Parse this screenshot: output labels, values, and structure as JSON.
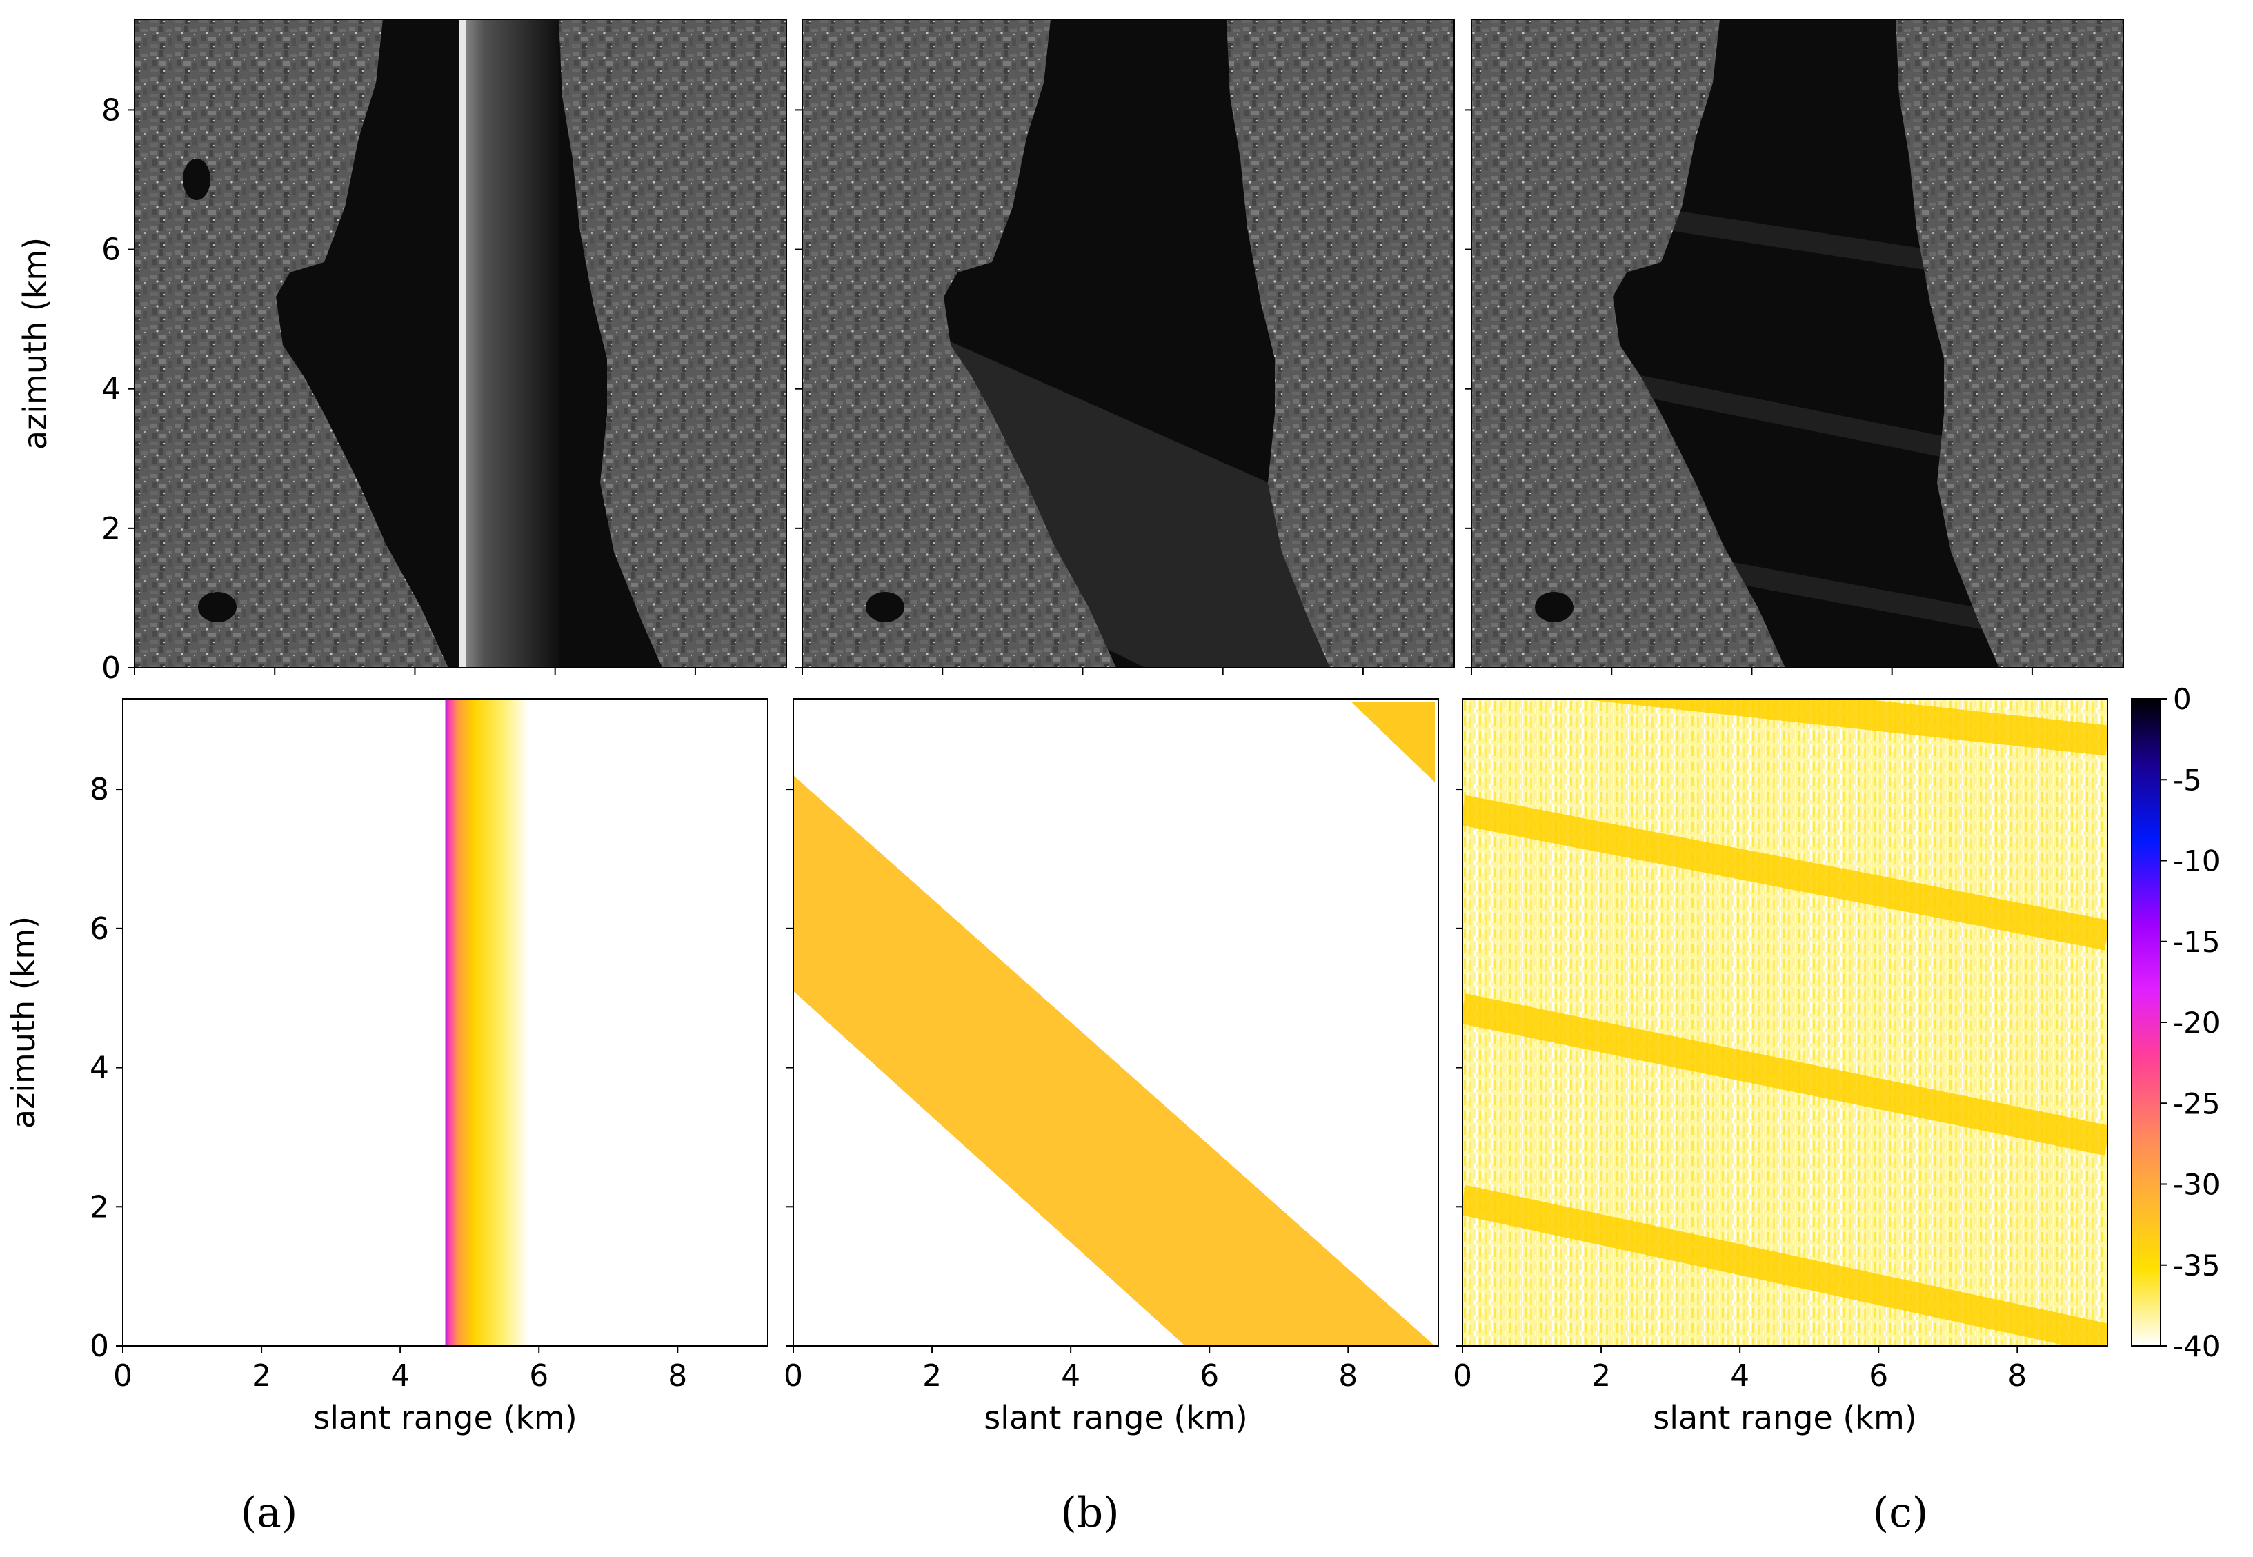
{
  "figure": {
    "subfigure_labels": [
      "(a)",
      "(b)",
      "(c)"
    ]
  },
  "chart_data": [
    {
      "type": "image",
      "panel": "a-top",
      "content": "SAR amplitude image with bright vertical line at slant range ~4.7 km",
      "xlim": [
        0,
        9.3
      ],
      "ylim": [
        0,
        9.3
      ],
      "xticks": [
        0,
        2,
        4,
        6,
        8
      ],
      "yticks": [
        0,
        2,
        4,
        6,
        8
      ],
      "ylabel": "azimuth (km)",
      "xlabel": "",
      "artifact": {
        "kind": "vertical-line",
        "x": 4.7
      }
    },
    {
      "type": "image",
      "panel": "b-top",
      "content": "SAR amplitude image with faint diagonal band over water",
      "xlim": [
        0,
        9.3
      ],
      "ylim": [
        0,
        9.3
      ],
      "xticks": [
        0,
        2,
        4,
        6,
        8
      ],
      "yticks": [
        0,
        2,
        4,
        6,
        8
      ],
      "ylabel": "",
      "xlabel": ""
    },
    {
      "type": "image",
      "panel": "c-top",
      "content": "SAR amplitude image with faint slanted stripes over water",
      "xlim": [
        0,
        9.3
      ],
      "ylim": [
        0,
        9.3
      ],
      "xticks": [
        0,
        2,
        4,
        6,
        8
      ],
      "yticks": [
        0,
        2,
        4,
        6,
        8
      ],
      "ylabel": "",
      "xlabel": ""
    },
    {
      "type": "heatmap",
      "panel": "a-bottom",
      "xlim": [
        0,
        9.3
      ],
      "ylim": [
        0,
        9.3
      ],
      "xticks": [
        0,
        2,
        4,
        6,
        8
      ],
      "yticks": [
        0,
        2,
        4,
        6,
        8
      ],
      "xlabel": "slant range (km)",
      "ylabel": "azimuth (km)",
      "band": {
        "kind": "vertical",
        "x_start": 4.65,
        "x_end": 5.85,
        "peak_db": -22,
        "edge_db": -40
      }
    },
    {
      "type": "heatmap",
      "panel": "b-bottom",
      "xlim": [
        0,
        9.3
      ],
      "ylim": [
        0,
        9.3
      ],
      "xticks": [
        0,
        2,
        4,
        6,
        8
      ],
      "yticks": [
        0,
        2,
        4,
        6,
        8
      ],
      "xlabel": "slant range (km)",
      "ylabel": "",
      "bands": [
        {
          "kind": "diagonal",
          "upper_edge": [
            [
              0,
              8.2
            ],
            [
              9.25,
              0
            ]
          ],
          "lower_edge": [
            [
              0,
              5.1
            ],
            [
              5.65,
              0
            ]
          ],
          "level_db": -32
        },
        {
          "kind": "corner",
          "upper_edge": [
            [
              8.05,
              9.25
            ],
            [
              9.25,
              9.25
            ]
          ],
          "lower_edge": [
            [
              9.25,
              8.1
            ]
          ],
          "level_db": -34
        }
      ]
    },
    {
      "type": "heatmap",
      "panel": "c-bottom",
      "xlim": [
        0,
        9.3
      ],
      "ylim": [
        0,
        9.3
      ],
      "xticks": [
        0,
        2,
        4,
        6,
        8
      ],
      "yticks": [
        0,
        2,
        4,
        6,
        8
      ],
      "xlabel": "slant range (km)",
      "ylabel": "",
      "background_db": -37,
      "stripes": [
        {
          "y_at_x0": 9.7,
          "y_at_xmax": 8.7
        },
        {
          "y_at_x0": 7.7,
          "y_at_xmax": 5.9
        },
        {
          "y_at_x0": 4.85,
          "y_at_xmax": 2.95
        },
        {
          "y_at_x0": 2.1,
          "y_at_xmax": 0.1
        }
      ],
      "stripe_db": -34
    }
  ],
  "colorbar": {
    "range": [
      -40,
      0
    ],
    "ticks": [
      "0",
      "-5",
      "-10",
      "-15",
      "-20",
      "-25",
      "-30",
      "-35",
      "-40"
    ],
    "tick_values": [
      0,
      -5,
      -10,
      -15,
      -20,
      -25,
      -30,
      -35,
      -40
    ],
    "colors_top_to_bottom": [
      "#000000",
      "#1a0090",
      "#0019ff",
      "#a000ff",
      "#e020ff",
      "#ff3c9a",
      "#ff8a5a",
      "#ffb830",
      "#ffe000",
      "#ffffff"
    ]
  }
}
